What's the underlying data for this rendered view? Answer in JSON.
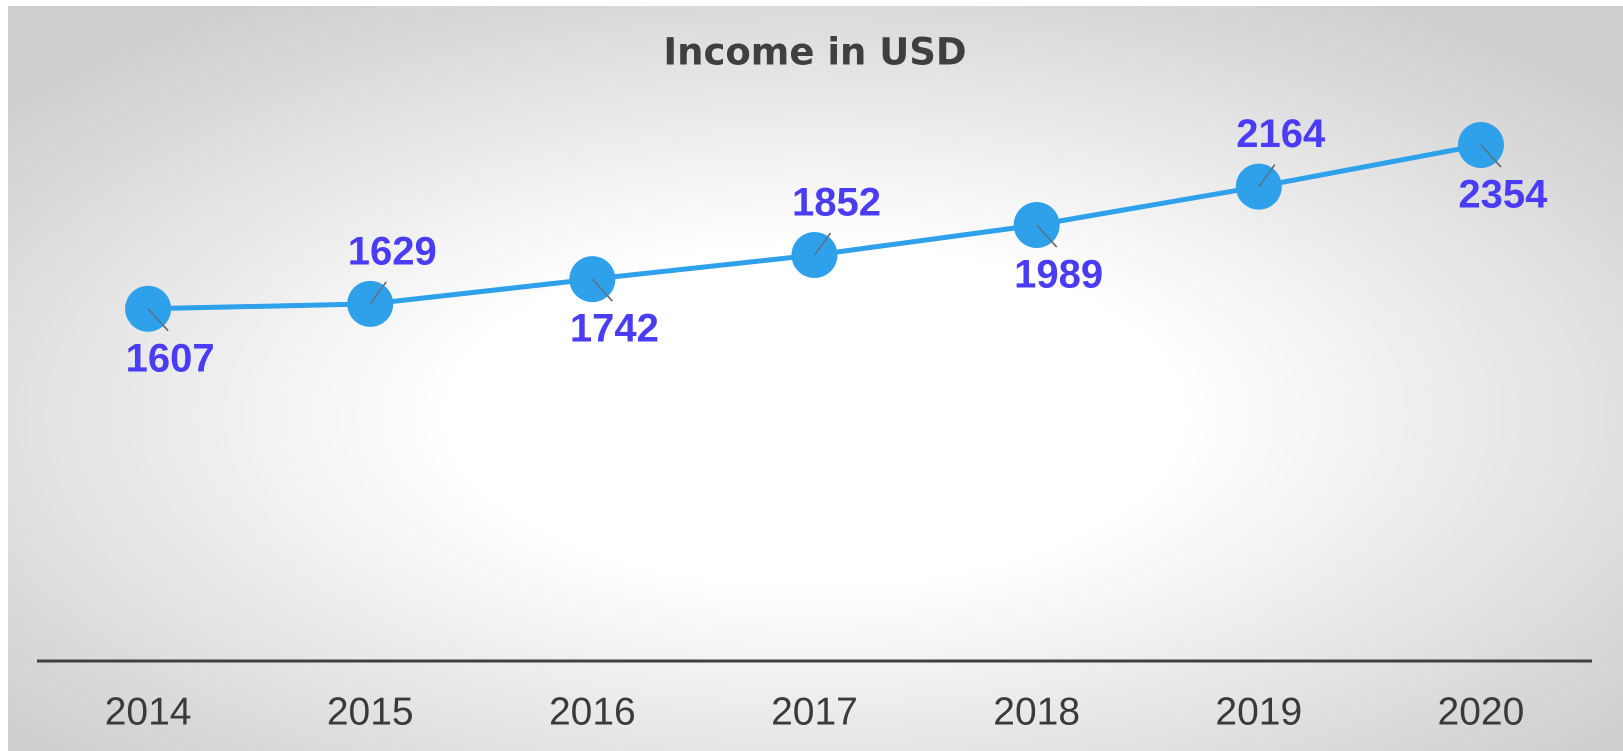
{
  "chart_data": {
    "type": "line",
    "title": "Income in USD",
    "categories": [
      "2014",
      "2015",
      "2016",
      "2017",
      "2018",
      "2019",
      "2020"
    ],
    "series": [
      {
        "name": "Income",
        "color": "#2fa0ea",
        "values": [
          1607,
          1629,
          1742,
          1852,
          1989,
          2164,
          2354
        ]
      }
    ],
    "ylim": [
      0,
      2500
    ],
    "grid": false
  }
}
